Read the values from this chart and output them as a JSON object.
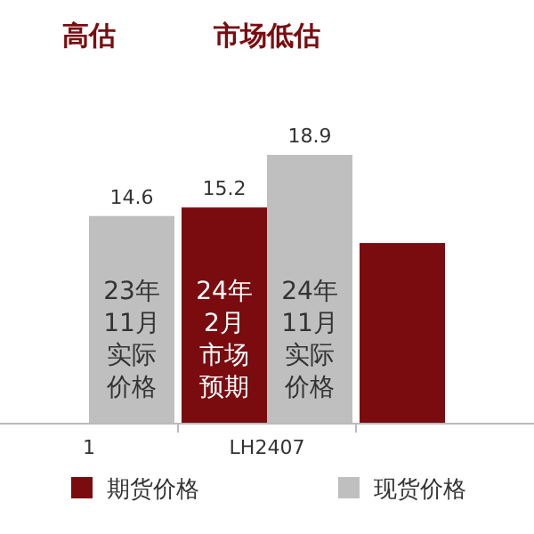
{
  "chart_data": {
    "type": "bar",
    "categories": [
      "1",
      "LH2407",
      null
    ],
    "series": [
      {
        "name": "期货价格",
        "color": "#7a0c10",
        "values": [
          null,
          15.2,
          12.7
        ],
        "value_labels": [
          null,
          "15.2",
          null
        ]
      },
      {
        "name": "现货价格",
        "color": "#bfbfbf",
        "values": [
          14.6,
          18.9,
          null
        ],
        "value_labels": [
          "14.6",
          "18.9",
          null
        ]
      }
    ],
    "annotations": [
      "高估",
      "市场低估",
      {
        "text": "23年11月实际价格",
        "x": "1",
        "y": 6
      },
      {
        "text": "24年2月市场预期",
        "x": "LH2407",
        "y": 6
      },
      {
        "text": "24年11月实际价格",
        "x": "LH2407",
        "y": 6
      }
    ],
    "legend": "bottom"
  }
}
